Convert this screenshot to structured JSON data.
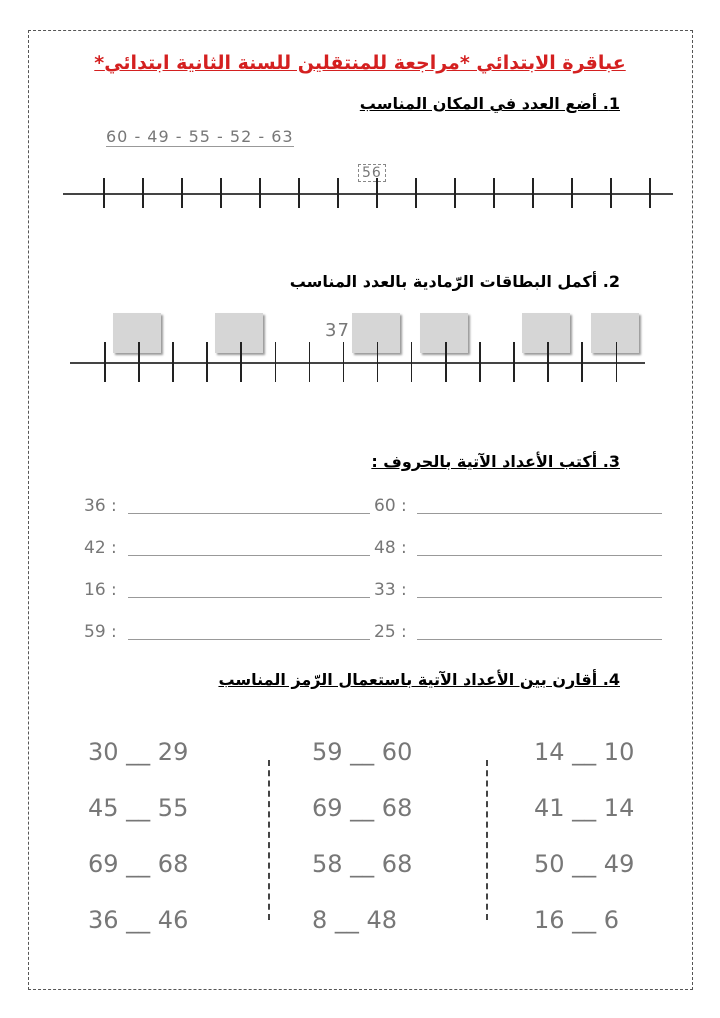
{
  "title": "*عباقرة الابتدائي *مراجعة للمنتقلين للسنة الثانية ابتدائي",
  "q1": {
    "label": "1. أضع العدد في المكان المناسب",
    "numbers": "60 - 49 - 55 - 52 - 63",
    "given": "56"
  },
  "q2": {
    "label": "2. أكمل البطاقات الرّمادية بالعدد المناسب",
    "given": "37"
  },
  "q3": {
    "label": "3. أكتب الأعداد الآتية بالحروف :",
    "rows": [
      [
        "36 :",
        "60 :"
      ],
      [
        "42 :",
        "48 :"
      ],
      [
        "16 :",
        "33 :"
      ],
      [
        "59 :",
        "25 :"
      ]
    ]
  },
  "q4": {
    "label": "4. أقارن بين الأعداد الآتية باستعمال الرّمز المناسب",
    "cols": [
      [
        "30 __ 29",
        "45 __ 55",
        "69 __ 68",
        "36 __ 46"
      ],
      [
        "59 __ 60",
        "69 __ 68",
        "58 __ 68",
        "8 __ 48"
      ],
      [
        "14 __ 10",
        "41 __ 14",
        "50 __ 49",
        "16 __ 6"
      ]
    ]
  }
}
